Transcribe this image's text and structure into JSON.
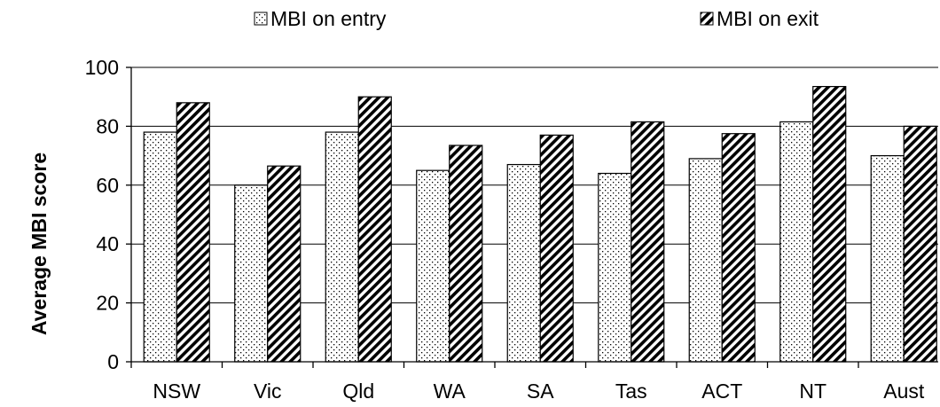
{
  "chart_data": {
    "type": "bar",
    "title": "",
    "xlabel": "",
    "ylabel": "Average MBI score",
    "categories": [
      "NSW",
      "Vic",
      "Qld",
      "WA",
      "SA",
      "Tas",
      "ACT",
      "NT",
      "Aust"
    ],
    "series": [
      {
        "name": "MBI on entry",
        "values": [
          78,
          60,
          78,
          65,
          67,
          64,
          69,
          81.5,
          70
        ],
        "pattern": "dots"
      },
      {
        "name": "MBI on exit",
        "values": [
          88,
          66.5,
          90,
          73.5,
          77,
          81.5,
          77.5,
          93.5,
          80
        ],
        "pattern": "diagonal-stripes"
      }
    ],
    "ylim": [
      0,
      100
    ],
    "yticks": [
      0,
      20,
      40,
      60,
      80,
      100
    ],
    "grid": true,
    "legend_position": "top",
    "colors": {
      "bar_fill": "#ffffff",
      "bar_stroke": "#000000",
      "pattern": "#000000",
      "grid": "#000000"
    }
  }
}
